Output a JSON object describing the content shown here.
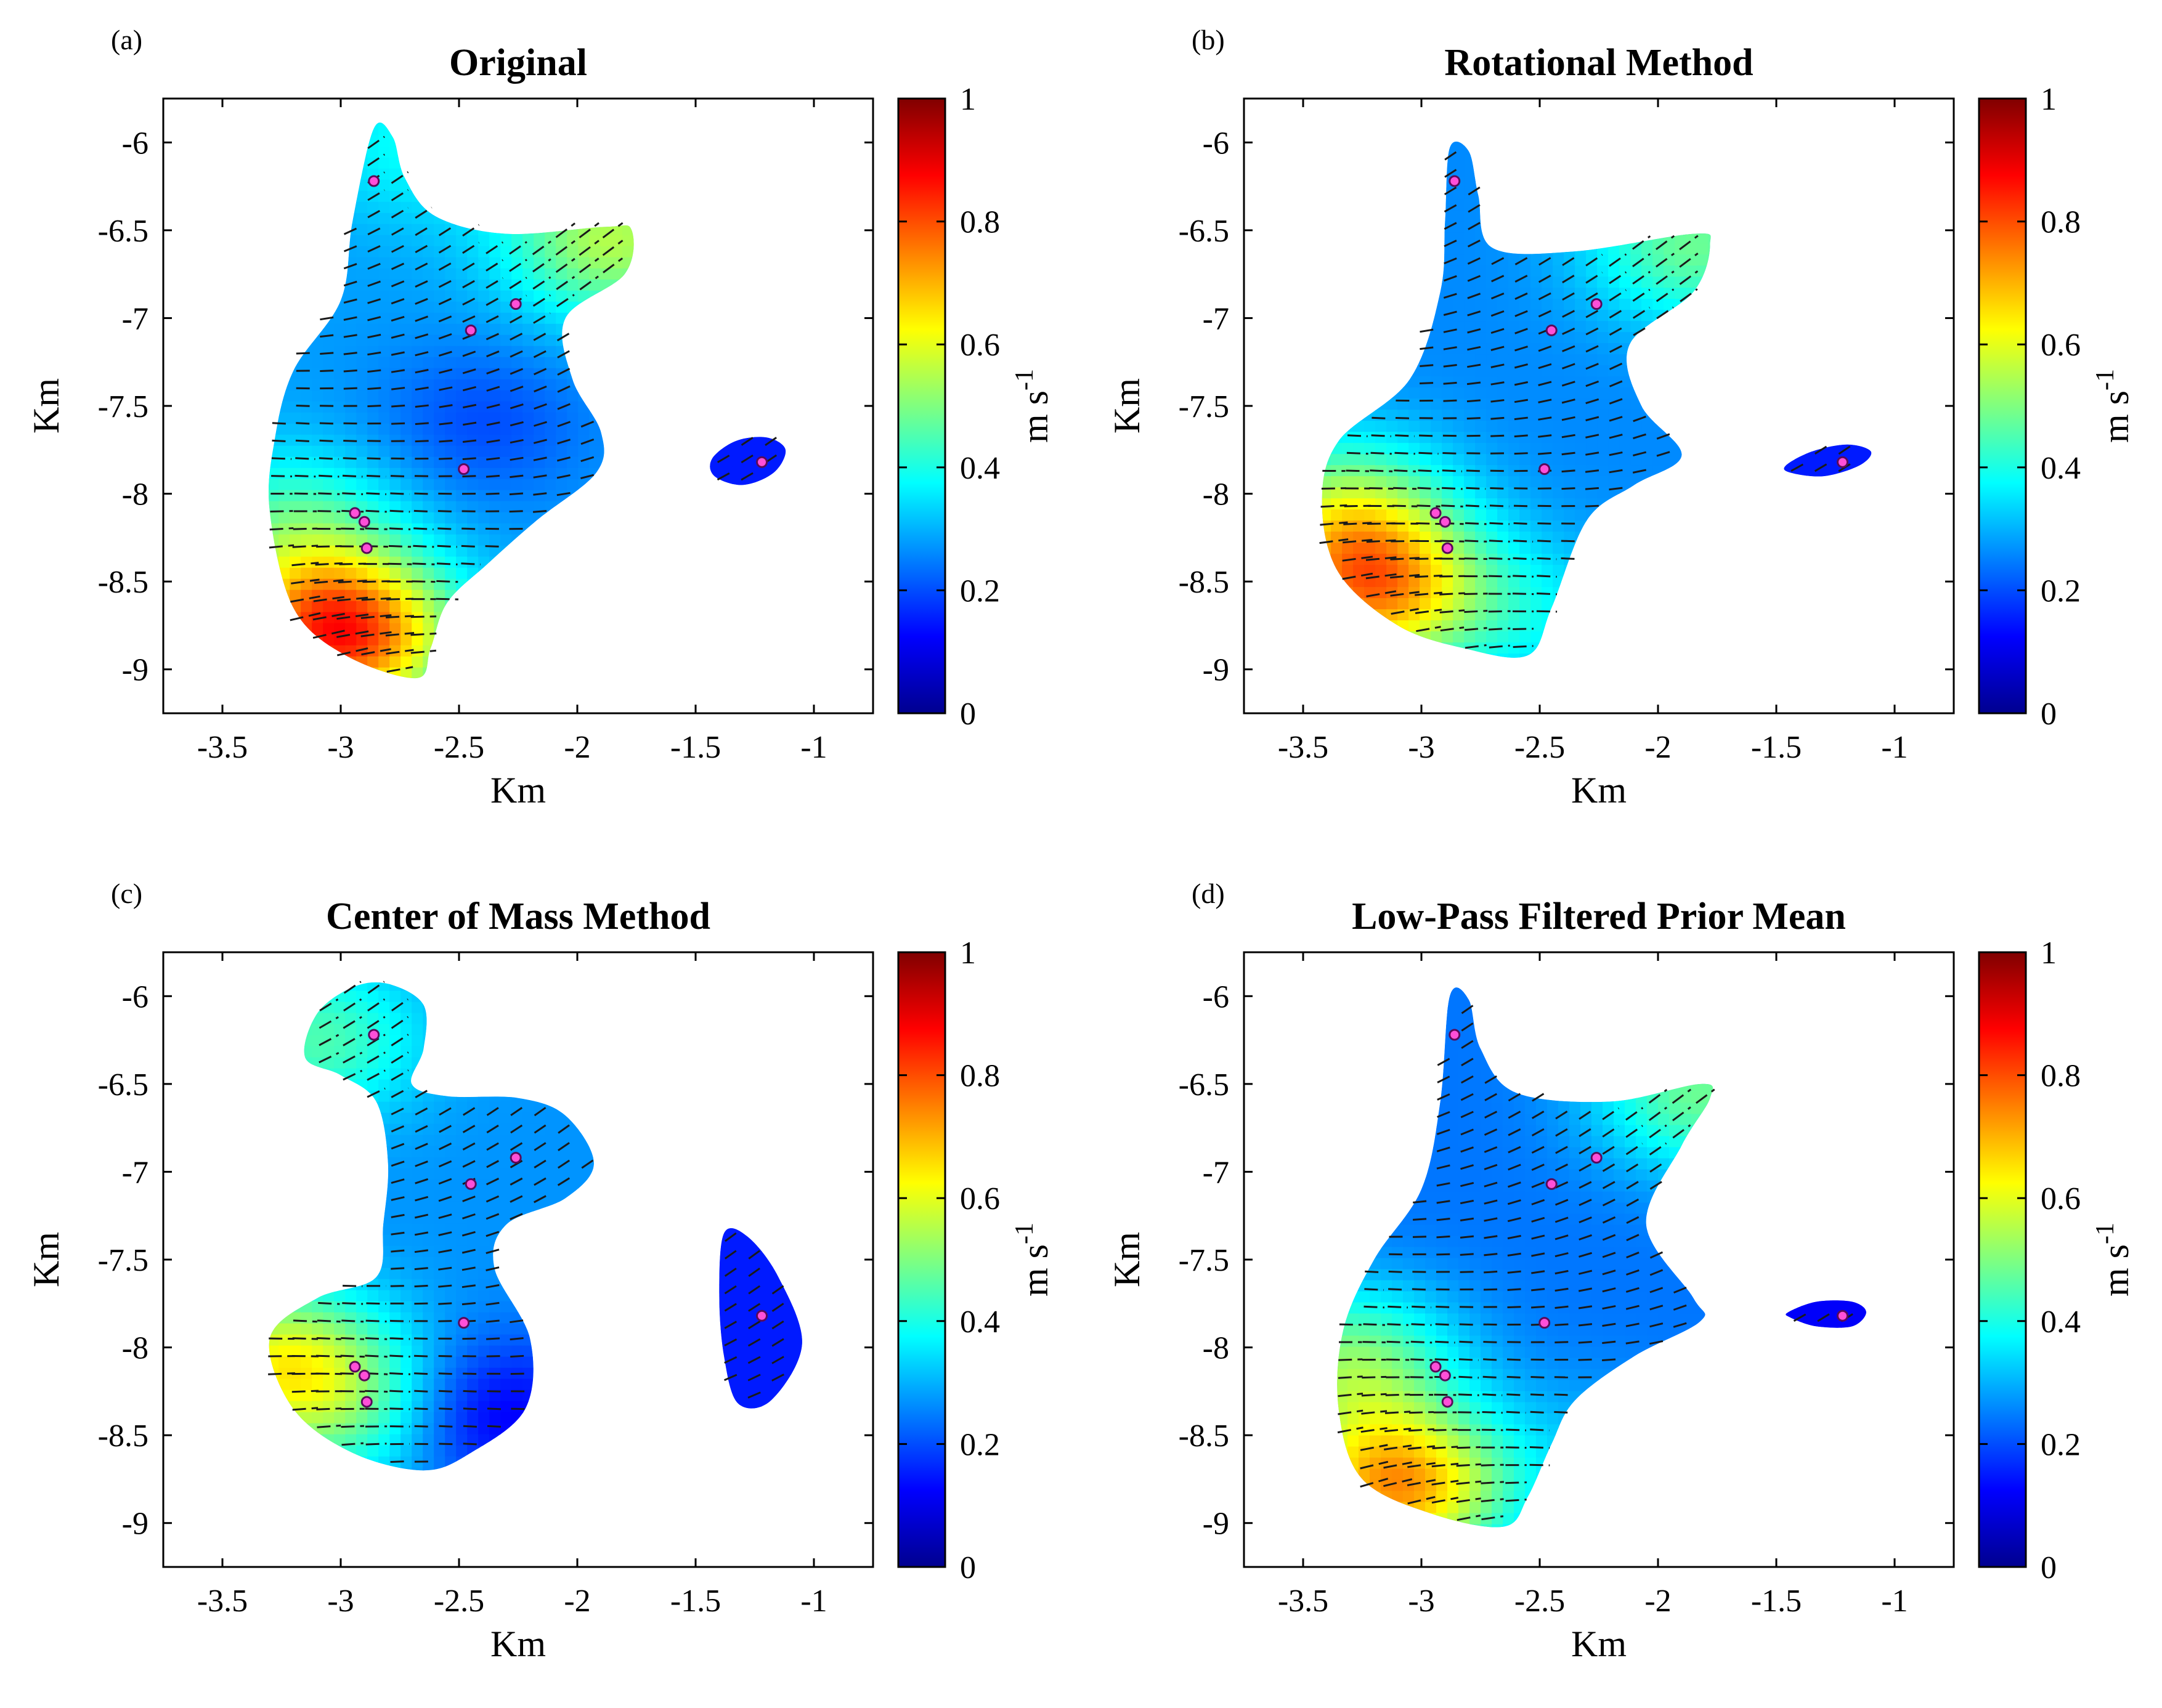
{
  "figure": {
    "colors": {
      "background": "#ffffff",
      "marker_fill": "#ff4fd8",
      "marker_edge": "#5a0a5a",
      "arrow": "#1a1a1a"
    },
    "colormap": "jet",
    "shared_axes": {
      "xlabel": "Km",
      "ylabel": "Km",
      "xlim": [
        -3.75,
        -0.75
      ],
      "ylim": [
        -9.25,
        -5.75
      ],
      "xticks": [
        "-3.5",
        "-3",
        "-2.5",
        "-2",
        "-1.5",
        "-1"
      ],
      "yticks": [
        "-6",
        "-6.5",
        "-7",
        "-7.5",
        "-8",
        "-8.5",
        "-9"
      ]
    },
    "colorbar": {
      "label": "m s",
      "label_superscript": "-1",
      "range": [
        0,
        1
      ],
      "ticks": [
        "0",
        "0.2",
        "0.4",
        "0.6",
        "0.8",
        "1"
      ]
    }
  },
  "chart_data": [
    {
      "type": "heatmap",
      "tag": "(a)",
      "title": "Original",
      "xlabel": "Km",
      "ylabel": "Km",
      "xlim": [
        -3.75,
        -0.75
      ],
      "ylim": [
        -9.25,
        -5.75
      ],
      "clim": [
        0,
        1
      ],
      "observation_points": [
        [
          -2.86,
          -6.22
        ],
        [
          -2.26,
          -6.92
        ],
        [
          -2.45,
          -7.07
        ],
        [
          -2.48,
          -7.86
        ],
        [
          -2.94,
          -8.11
        ],
        [
          -2.9,
          -8.16
        ],
        [
          -2.89,
          -8.31
        ],
        [
          -1.22,
          -7.82
        ]
      ],
      "regions": [
        {
          "outline": [
            [
              -2.86,
              -5.92
            ],
            [
              -2.78,
              -5.97
            ],
            [
              -2.73,
              -6.2
            ],
            [
              -2.6,
              -6.42
            ],
            [
              -2.3,
              -6.52
            ],
            [
              -1.88,
              -6.48
            ],
            [
              -1.77,
              -6.5
            ],
            [
              -1.8,
              -6.75
            ],
            [
              -2.05,
              -7.0
            ],
            [
              -2.02,
              -7.35
            ],
            [
              -1.9,
              -7.65
            ],
            [
              -1.92,
              -7.88
            ],
            [
              -2.17,
              -8.15
            ],
            [
              -2.38,
              -8.4
            ],
            [
              -2.55,
              -8.62
            ],
            [
              -2.62,
              -8.88
            ],
            [
              -2.68,
              -9.05
            ],
            [
              -2.98,
              -8.92
            ],
            [
              -3.2,
              -8.65
            ],
            [
              -3.3,
              -8.1
            ],
            [
              -3.28,
              -7.7
            ],
            [
              -3.2,
              -7.3
            ],
            [
              -3.0,
              -6.9
            ],
            [
              -2.95,
              -6.45
            ]
          ],
          "speed_hotspots": [
            [
              -3.0,
              -8.8,
              0.85
            ],
            [
              -3.2,
              -8.2,
              0.45
            ],
            [
              -2.7,
              -6.0,
              0.38
            ],
            [
              -1.85,
              -6.55,
              0.55
            ],
            [
              -2.4,
              -7.6,
              0.2
            ]
          ],
          "base_speed": 0.28
        },
        {
          "outline": [
            [
              -1.43,
              -7.8
            ],
            [
              -1.33,
              -7.7
            ],
            [
              -1.2,
              -7.68
            ],
            [
              -1.12,
              -7.75
            ],
            [
              -1.17,
              -7.88
            ],
            [
              -1.3,
              -7.95
            ],
            [
              -1.42,
              -7.9
            ]
          ],
          "speed_hotspots": [],
          "base_speed": 0.15
        }
      ]
    },
    {
      "type": "heatmap",
      "tag": "(b)",
      "title": "Rotational Method",
      "xlabel": "Km",
      "ylabel": "Km",
      "xlim": [
        -3.75,
        -0.75
      ],
      "ylim": [
        -9.25,
        -5.75
      ],
      "clim": [
        0,
        1
      ],
      "observation_points": [
        [
          -2.86,
          -6.22
        ],
        [
          -2.26,
          -6.92
        ],
        [
          -2.45,
          -7.07
        ],
        [
          -2.48,
          -7.86
        ],
        [
          -2.94,
          -8.11
        ],
        [
          -2.9,
          -8.16
        ],
        [
          -2.89,
          -8.31
        ],
        [
          -1.22,
          -7.82
        ]
      ],
      "regions": [
        {
          "outline": [
            [
              -2.88,
              -6.03
            ],
            [
              -2.8,
              -6.05
            ],
            [
              -2.76,
              -6.3
            ],
            [
              -2.7,
              -6.6
            ],
            [
              -2.35,
              -6.62
            ],
            [
              -1.85,
              -6.52
            ],
            [
              -1.78,
              -6.58
            ],
            [
              -1.85,
              -6.85
            ],
            [
              -2.12,
              -7.15
            ],
            [
              -2.07,
              -7.5
            ],
            [
              -1.9,
              -7.78
            ],
            [
              -2.1,
              -7.95
            ],
            [
              -2.3,
              -8.15
            ],
            [
              -2.45,
              -8.65
            ],
            [
              -2.55,
              -8.92
            ],
            [
              -2.82,
              -8.88
            ],
            [
              -3.1,
              -8.75
            ],
            [
              -3.35,
              -8.45
            ],
            [
              -3.42,
              -8.05
            ],
            [
              -3.35,
              -7.7
            ],
            [
              -3.05,
              -7.35
            ],
            [
              -2.92,
              -6.85
            ],
            [
              -2.9,
              -6.45
            ]
          ],
          "speed_hotspots": [
            [
              -3.2,
              -8.55,
              0.7
            ],
            [
              -3.32,
              -8.1,
              0.5
            ],
            [
              -1.85,
              -6.58,
              0.48
            ],
            [
              -2.5,
              -8.7,
              0.35
            ]
          ],
          "base_speed": 0.26
        },
        {
          "outline": [
            [
              -1.46,
              -7.84
            ],
            [
              -1.35,
              -7.76
            ],
            [
              -1.2,
              -7.72
            ],
            [
              -1.1,
              -7.76
            ],
            [
              -1.15,
              -7.84
            ],
            [
              -1.3,
              -7.9
            ],
            [
              -1.44,
              -7.88
            ]
          ],
          "speed_hotspots": [],
          "base_speed": 0.15
        }
      ]
    },
    {
      "type": "heatmap",
      "tag": "(c)",
      "title": "Center of Mass Method",
      "xlabel": "Km",
      "ylabel": "Km",
      "xlim": [
        -3.75,
        -0.75
      ],
      "ylim": [
        -9.25,
        -5.75
      ],
      "clim": [
        0,
        1
      ],
      "observation_points": [
        [
          -2.86,
          -6.22
        ],
        [
          -2.26,
          -6.92
        ],
        [
          -2.45,
          -7.07
        ],
        [
          -2.48,
          -7.86
        ],
        [
          -2.94,
          -8.11
        ],
        [
          -2.9,
          -8.16
        ],
        [
          -2.89,
          -8.31
        ],
        [
          -1.22,
          -7.82
        ]
      ],
      "regions": [
        {
          "outline": [
            [
              -3.1,
              -6.1
            ],
            [
              -2.95,
              -5.95
            ],
            [
              -2.8,
              -5.93
            ],
            [
              -2.65,
              -6.05
            ],
            [
              -2.65,
              -6.3
            ],
            [
              -2.7,
              -6.5
            ],
            [
              -2.55,
              -6.57
            ],
            [
              -2.25,
              -6.58
            ],
            [
              -2.05,
              -6.68
            ],
            [
              -1.93,
              -6.95
            ],
            [
              -2.05,
              -7.15
            ],
            [
              -2.3,
              -7.3
            ],
            [
              -2.35,
              -7.55
            ],
            [
              -2.2,
              -7.95
            ],
            [
              -2.22,
              -8.35
            ],
            [
              -2.45,
              -8.6
            ],
            [
              -2.65,
              -8.7
            ],
            [
              -2.95,
              -8.6
            ],
            [
              -3.2,
              -8.35
            ],
            [
              -3.3,
              -7.95
            ],
            [
              -3.1,
              -7.72
            ],
            [
              -2.85,
              -7.6
            ],
            [
              -2.82,
              -7.3
            ],
            [
              -2.8,
              -6.95
            ],
            [
              -2.85,
              -6.6
            ],
            [
              -3.0,
              -6.45
            ],
            [
              -3.15,
              -6.35
            ]
          ],
          "speed_hotspots": [
            [
              -3.25,
              -8.1,
              0.6
            ],
            [
              -3.1,
              -6.25,
              0.45
            ],
            [
              -2.35,
              -8.4,
              0.1
            ],
            [
              -2.9,
              -8.4,
              0.4
            ]
          ],
          "base_speed": 0.27
        },
        {
          "outline": [
            [
              -1.38,
              -7.35
            ],
            [
              -1.28,
              -7.37
            ],
            [
              -1.15,
              -7.6
            ],
            [
              -1.05,
              -7.98
            ],
            [
              -1.18,
              -8.3
            ],
            [
              -1.32,
              -8.32
            ],
            [
              -1.38,
              -8.05
            ],
            [
              -1.4,
              -7.7
            ]
          ],
          "speed_hotspots": [],
          "base_speed": 0.15
        }
      ]
    },
    {
      "type": "heatmap",
      "tag": "(d)",
      "title": "Low-Pass Filtered Prior Mean",
      "xlabel": "Km",
      "ylabel": "Km",
      "xlim": [
        -3.75,
        -0.75
      ],
      "ylim": [
        -9.25,
        -5.75
      ],
      "clim": [
        0,
        1
      ],
      "observation_points": [
        [
          -2.86,
          -6.22
        ],
        [
          -2.26,
          -6.92
        ],
        [
          -2.45,
          -7.07
        ],
        [
          -2.48,
          -7.86
        ],
        [
          -2.94,
          -8.11
        ],
        [
          -2.9,
          -8.16
        ],
        [
          -2.89,
          -8.31
        ],
        [
          -1.22,
          -7.82
        ]
      ],
      "regions": [
        {
          "outline": [
            [
              -2.88,
              -6.0
            ],
            [
              -2.8,
              -6.02
            ],
            [
              -2.75,
              -6.3
            ],
            [
              -2.6,
              -6.55
            ],
            [
              -2.2,
              -6.6
            ],
            [
              -1.82,
              -6.5
            ],
            [
              -1.78,
              -6.58
            ],
            [
              -1.9,
              -6.85
            ],
            [
              -2.05,
              -7.3
            ],
            [
              -1.85,
              -7.72
            ],
            [
              -1.82,
              -7.85
            ],
            [
              -2.1,
              -8.05
            ],
            [
              -2.35,
              -8.3
            ],
            [
              -2.45,
              -8.55
            ],
            [
              -2.55,
              -8.85
            ],
            [
              -2.65,
              -9.02
            ],
            [
              -2.95,
              -8.95
            ],
            [
              -3.25,
              -8.75
            ],
            [
              -3.35,
              -8.35
            ],
            [
              -3.33,
              -7.9
            ],
            [
              -3.2,
              -7.5
            ],
            [
              -3.0,
              -7.1
            ],
            [
              -2.92,
              -6.6
            ]
          ],
          "speed_hotspots": [
            [
              -3.1,
              -8.8,
              0.72
            ],
            [
              -3.3,
              -8.1,
              0.5
            ],
            [
              -1.82,
              -6.55,
              0.48
            ],
            [
              -2.3,
              -8.6,
              0.3
            ]
          ],
          "base_speed": 0.24
        },
        {
          "outline": [
            [
              -1.45,
              -7.8
            ],
            [
              -1.33,
              -7.74
            ],
            [
              -1.18,
              -7.74
            ],
            [
              -1.12,
              -7.8
            ],
            [
              -1.18,
              -7.88
            ],
            [
              -1.33,
              -7.88
            ],
            [
              -1.44,
              -7.83
            ]
          ],
          "speed_hotspots": [],
          "base_speed": 0.12
        }
      ]
    }
  ]
}
